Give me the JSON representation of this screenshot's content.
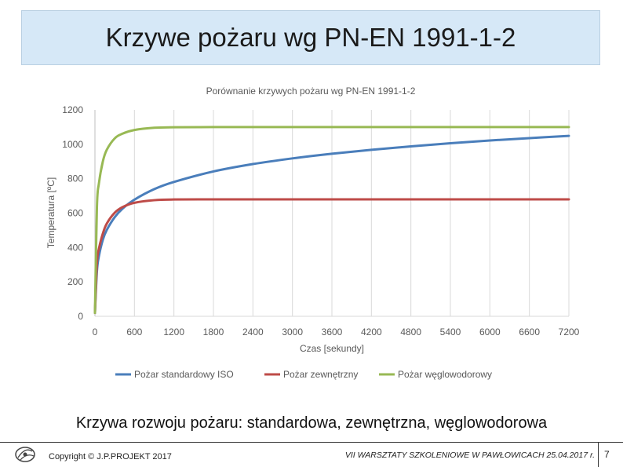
{
  "slide": {
    "title": "Krzywe pożaru wg PN-EN 1991-1-2",
    "caption": "Krzywa rozwoju pożaru: standardowa, zewnętrzna, węglowodorowa",
    "footer_left": "Copyright © J.P.PROJEKT 2017",
    "footer_right": "VII WARSZTATY SZKOLENIOWE W PAWŁOWICACH  25.04.2017 r.",
    "page_number": "7"
  },
  "chart_data": {
    "type": "line",
    "title": "Porównanie krzywych pożaru wg PN-EN 1991-1-2",
    "xlabel": "Czas [sekundy]",
    "ylabel": "Temperatura [ºC]",
    "xlim": [
      0,
      7200
    ],
    "ylim": [
      0,
      1200
    ],
    "xticks": [
      0,
      600,
      1200,
      1800,
      2400,
      3000,
      3600,
      4200,
      4800,
      5400,
      6000,
      6600,
      7200
    ],
    "yticks": [
      0,
      200,
      400,
      600,
      800,
      1000,
      1200
    ],
    "grid": "vertical",
    "legend_position": "bottom",
    "x": [
      0,
      30,
      60,
      120,
      180,
      300,
      420,
      600,
      900,
      1200,
      1800,
      2400,
      3000,
      3600,
      4200,
      4800,
      5400,
      6000,
      6600,
      7200
    ],
    "series": [
      {
        "name": "Pożar standardowy ISO",
        "color": "#4a7ebb",
        "values": [
          20,
          261,
          349,
          445,
          502,
          576,
          626,
          678,
          739,
          781,
          842,
          885,
          918,
          945,
          968,
          988,
          1006,
          1022,
          1036,
          1049
        ]
      },
      {
        "name": "Pożar zewnętrzny",
        "color": "#be4b48",
        "values": [
          20,
          311,
          392,
          481,
          539,
          602,
          635,
          660,
          675,
          679,
          680,
          680,
          680,
          680,
          680,
          680,
          680,
          680,
          680,
          680
        ]
      },
      {
        "name": "Pożar węglowodorowy",
        "color": "#98b954",
        "values": [
          20,
          633,
          772,
          900,
          968,
          1034,
          1062,
          1083,
          1096,
          1099,
          1100,
          1100,
          1100,
          1100,
          1100,
          1100,
          1100,
          1100,
          1100,
          1100
        ]
      }
    ]
  }
}
